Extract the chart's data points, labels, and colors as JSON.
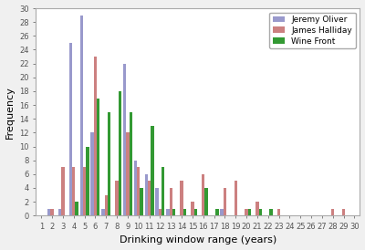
{
  "title": "",
  "xlabel": "Drinking window range (years)",
  "ylabel": "Frequency",
  "xlim": [
    0.5,
    30.5
  ],
  "ylim": [
    0,
    30
  ],
  "yticks": [
    0,
    2,
    4,
    6,
    8,
    10,
    12,
    14,
    16,
    18,
    20,
    22,
    24,
    26,
    28,
    30
  ],
  "xticks": [
    1,
    2,
    3,
    4,
    5,
    6,
    7,
    8,
    9,
    10,
    11,
    12,
    13,
    14,
    15,
    16,
    17,
    18,
    19,
    20,
    21,
    22,
    23,
    24,
    25,
    26,
    27,
    28,
    29,
    30
  ],
  "categories": [
    1,
    2,
    3,
    4,
    5,
    6,
    7,
    8,
    9,
    10,
    11,
    12,
    13,
    14,
    15,
    16,
    17,
    18,
    19,
    20,
    21,
    22,
    23,
    24,
    25,
    26,
    27,
    28,
    29,
    30
  ],
  "jeremy_oliver": [
    0,
    1,
    1,
    25,
    29,
    12,
    1,
    0,
    22,
    8,
    6,
    4,
    1,
    0,
    0,
    0,
    0,
    1,
    0,
    0,
    0,
    0,
    0,
    0,
    0,
    0,
    0,
    0,
    0,
    0
  ],
  "james_halliday": [
    0,
    1,
    7,
    7,
    7,
    23,
    3,
    5,
    12,
    7,
    5,
    1,
    4,
    5,
    2,
    6,
    0,
    4,
    5,
    1,
    2,
    0,
    1,
    0,
    0,
    0,
    0,
    1,
    1,
    0
  ],
  "wine_front": [
    0,
    0,
    0,
    2,
    10,
    17,
    15,
    18,
    15,
    4,
    13,
    7,
    1,
    1,
    1,
    4,
    1,
    0,
    0,
    1,
    1,
    1,
    0,
    0,
    0,
    0,
    0,
    0,
    0,
    0
  ],
  "colors": {
    "jeremy_oliver": "#9999cc",
    "james_halliday": "#cc8080",
    "wine_front": "#339933"
  },
  "legend_labels": [
    "Jeremy Oliver",
    "James Halliday",
    "Wine Front"
  ],
  "bar_width": 0.28,
  "bg_color": "#f0f0f0",
  "plot_bg_color": "#ffffff",
  "grid_color": "#ffffff",
  "tick_label_fontsize": 6,
  "axis_label_fontsize": 8,
  "legend_fontsize": 6.5
}
